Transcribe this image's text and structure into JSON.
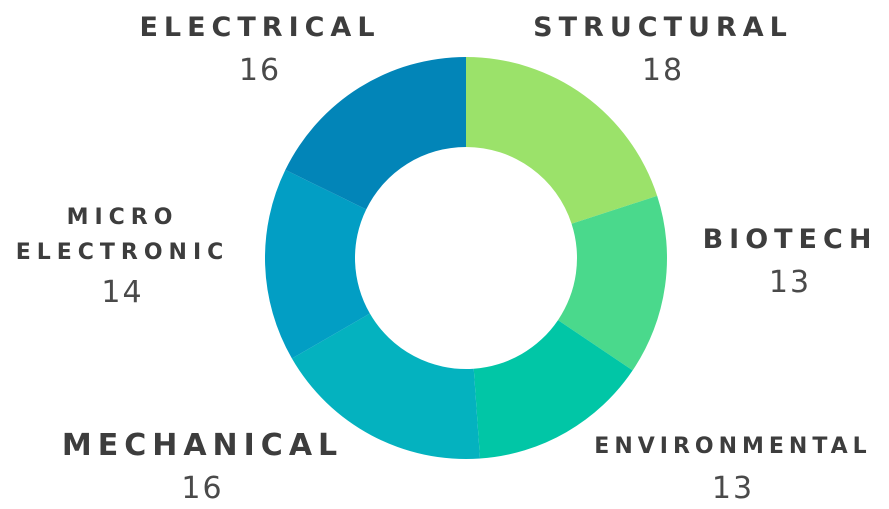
{
  "chart_data": {
    "type": "pie",
    "donut": true,
    "title": "",
    "slices": [
      {
        "label": "STRUCTURAL",
        "value": 18,
        "color": "#9be26a"
      },
      {
        "label": "BIOTECH",
        "value": 13,
        "color": "#4ad98c"
      },
      {
        "label": "ENVIRONMENTAL",
        "value": 13,
        "color": "#01c6a6"
      },
      {
        "label": "MECHANICAL",
        "value": 16,
        "color": "#04b2bf"
      },
      {
        "label": "MICRO ELECTRONIC",
        "value": 14,
        "color": "#029ec4"
      },
      {
        "label": "ELECTRICAL",
        "value": 16,
        "color": "#0285b8"
      }
    ]
  },
  "labels": {
    "structural": {
      "name": "STRUCTURAL",
      "value": "18"
    },
    "biotech": {
      "name": "BIOTECH",
      "value": "13"
    },
    "environmental": {
      "name": "ENVIRONMENTAL",
      "value": "13"
    },
    "mechanical": {
      "name": "MECHANICAL",
      "value": "16"
    },
    "micro_electronic": {
      "name_line1": "MICRO",
      "name_line2": "ELECTRONIC",
      "value": "14"
    },
    "electrical": {
      "name": "ELECTRICAL",
      "value": "16"
    }
  }
}
